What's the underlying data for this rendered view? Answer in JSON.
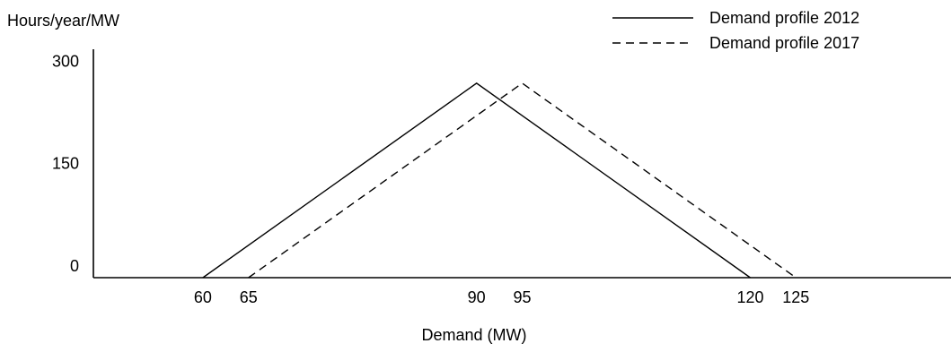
{
  "chart_data": {
    "type": "line",
    "ylabel": "Hours/year/MW",
    "xlabel": "Demand (MW)",
    "x_ticks": [
      60,
      65,
      90,
      95,
      120,
      125
    ],
    "y_ticks": [
      0,
      150,
      300
    ],
    "xlim": [
      48,
      142
    ],
    "ylim": [
      0,
      300
    ],
    "legend_position": "top-right",
    "series": [
      {
        "name": "Demand profile 2012",
        "line_style": "solid",
        "color": "#000000",
        "points": [
          [
            60,
            0
          ],
          [
            90,
            285
          ],
          [
            120,
            0
          ]
        ]
      },
      {
        "name": "Demand profile 2017",
        "line_style": "dashed",
        "color": "#000000",
        "points": [
          [
            65,
            0
          ],
          [
            95,
            285
          ],
          [
            125,
            0
          ]
        ]
      }
    ]
  }
}
